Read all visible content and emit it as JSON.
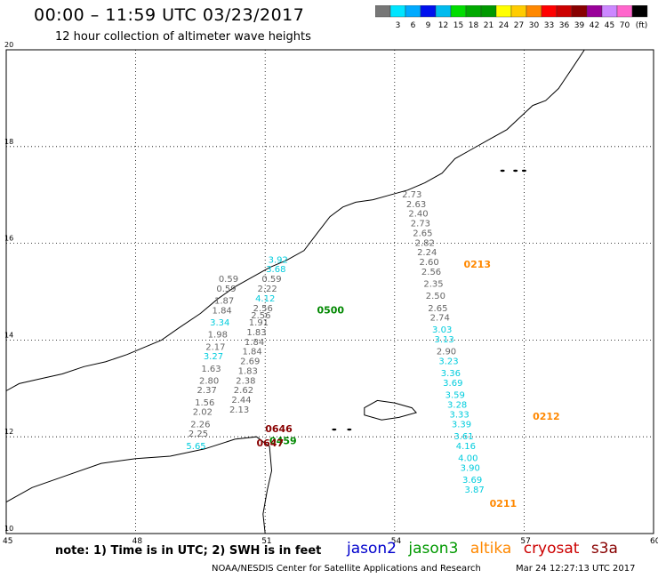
{
  "header": {
    "title": "00:00 – 11:59 UTC 03/23/2017",
    "subtitle": "12 hour collection of altimeter wave heights"
  },
  "legend": {
    "bins": [
      {
        "label": "",
        "color": "#777777"
      },
      {
        "label": "3",
        "color": "#00e5ff"
      },
      {
        "label": "6",
        "color": "#00aaff"
      },
      {
        "label": "9",
        "color": "#0011ee"
      },
      {
        "label": "12",
        "color": "#00bbee"
      },
      {
        "label": "15",
        "color": "#00dd00"
      },
      {
        "label": "18",
        "color": "#00aa00"
      },
      {
        "label": "21",
        "color": "#009900"
      },
      {
        "label": "24",
        "color": "#ffff00"
      },
      {
        "label": "27",
        "color": "#ffcc00"
      },
      {
        "label": "30",
        "color": "#ff8800"
      },
      {
        "label": "33",
        "color": "#ff0000"
      },
      {
        "label": "36",
        "color": "#cc0000"
      },
      {
        "label": "39",
        "color": "#880000"
      },
      {
        "label": "42",
        "color": "#990099"
      },
      {
        "label": "45",
        "color": "#cc88ff"
      },
      {
        "label": "70",
        "color": "#ff66cc"
      },
      {
        "label": "(ft)",
        "color": "#000000"
      }
    ]
  },
  "chart_data": {
    "type": "scatter",
    "xlim": [
      45,
      60
    ],
    "ylim": [
      10,
      20
    ],
    "x_ticks": [
      "45",
      "48",
      "51",
      "54",
      "57",
      "60"
    ],
    "y_ticks": [
      "10",
      "12",
      "14",
      "16",
      "18",
      "20"
    ],
    "grid": true,
    "series": [
      {
        "name": "altika",
        "color": "#777777",
        "points": [
          [
            54.4,
            16.95,
            "2.73"
          ],
          [
            54.5,
            16.75,
            "2.63"
          ],
          [
            54.55,
            16.55,
            "2.40"
          ],
          [
            54.6,
            16.35,
            "2.73"
          ],
          [
            54.65,
            16.15,
            "2.65"
          ],
          [
            54.7,
            15.95,
            "2.82"
          ],
          [
            54.75,
            15.75,
            "2.24"
          ],
          [
            54.8,
            15.55,
            "2.60"
          ],
          [
            54.85,
            15.35,
            "2.56"
          ],
          [
            54.9,
            15.1,
            "2.35"
          ],
          [
            54.95,
            14.85,
            "2.50"
          ],
          [
            55.0,
            14.6,
            "2.65"
          ],
          [
            55.05,
            14.4,
            "2.74"
          ],
          [
            55.1,
            14.15,
            "3.03"
          ],
          [
            55.15,
            13.95,
            "3.13"
          ],
          [
            55.2,
            13.7,
            "2.90"
          ],
          [
            55.25,
            13.5,
            "3.23"
          ],
          [
            55.3,
            13.25,
            "3.36"
          ],
          [
            55.35,
            13.05,
            "3.69"
          ],
          [
            55.4,
            12.8,
            "3.59"
          ],
          [
            55.45,
            12.6,
            "3.28"
          ],
          [
            55.5,
            12.4,
            "3.33"
          ],
          [
            55.55,
            12.2,
            "3.39"
          ],
          [
            55.6,
            11.95,
            "3.61"
          ],
          [
            55.65,
            11.75,
            "4.16"
          ],
          [
            55.7,
            11.5,
            "4.00"
          ],
          [
            55.75,
            11.3,
            "3.90"
          ],
          [
            55.8,
            11.05,
            "3.69"
          ],
          [
            55.85,
            10.85,
            "3.87"
          ]
        ]
      },
      {
        "name": "jason3",
        "color": "#777777",
        "points": [
          [
            51.3,
            15.6,
            "3.92"
          ],
          [
            51.25,
            15.4,
            "3.68"
          ],
          [
            51.15,
            15.2,
            "0.59"
          ],
          [
            51.05,
            15.0,
            "2.22"
          ],
          [
            51.0,
            14.8,
            "4.12"
          ],
          [
            50.95,
            14.6,
            "2.56"
          ],
          [
            50.9,
            14.45,
            "2.56"
          ],
          [
            50.85,
            14.3,
            "1.91"
          ],
          [
            50.8,
            14.1,
            "1.83"
          ],
          [
            50.75,
            13.9,
            "1.84"
          ],
          [
            50.7,
            13.7,
            "1.84"
          ],
          [
            50.65,
            13.5,
            "2.69"
          ],
          [
            50.6,
            13.3,
            "1.83"
          ],
          [
            50.55,
            13.1,
            "2.38"
          ],
          [
            50.5,
            12.9,
            "2.62"
          ],
          [
            50.45,
            12.7,
            "2.44"
          ],
          [
            50.4,
            12.5,
            "2.13"
          ]
        ]
      },
      {
        "name": "jason2",
        "color": "#777777",
        "points": [
          [
            50.15,
            15.2,
            "0.59"
          ],
          [
            50.1,
            15.0,
            "0.59"
          ],
          [
            50.05,
            14.75,
            "1.87"
          ],
          [
            50.0,
            14.55,
            "1.84"
          ],
          [
            49.95,
            14.3,
            "3.34"
          ],
          [
            49.9,
            14.05,
            "1.98"
          ],
          [
            49.85,
            13.8,
            "2.17"
          ],
          [
            49.8,
            13.6,
            "3.27"
          ],
          [
            49.75,
            13.35,
            "1.63"
          ],
          [
            49.7,
            13.1,
            "2.80"
          ],
          [
            49.65,
            12.9,
            "2.37"
          ],
          [
            49.6,
            12.65,
            "1.56"
          ],
          [
            49.55,
            12.45,
            "2.02"
          ],
          [
            49.5,
            12.2,
            "2.26"
          ],
          [
            49.45,
            12.0,
            "2.25"
          ],
          [
            49.4,
            11.75,
            "5.65"
          ]
        ]
      }
    ],
    "annotations": [
      {
        "text": "0213",
        "color": "#ff8800",
        "x": 55.6,
        "y": 15.5
      },
      {
        "text": "0212",
        "color": "#ff8800",
        "x": 57.2,
        "y": 12.35
      },
      {
        "text": "0211",
        "color": "#ff8800",
        "x": 56.2,
        "y": 10.55
      },
      {
        "text": "0500",
        "color": "#008800",
        "x": 52.2,
        "y": 14.55
      },
      {
        "text": "0459",
        "color": "#008800",
        "x": 51.1,
        "y": 11.85
      },
      {
        "text": "0646",
        "color": "#880000",
        "x": 51.0,
        "y": 12.1
      },
      {
        "text": "0647",
        "color": "#880000",
        "x": 50.8,
        "y": 11.8
      }
    ]
  },
  "footer": {
    "note": "note:  1) Time is in UTC;  2) SWH is in feet",
    "sats": [
      {
        "label": "jason2",
        "color": "#0000cc"
      },
      {
        "label": "jason3",
        "color": "#009900"
      },
      {
        "label": "altika",
        "color": "#ff8800"
      },
      {
        "label": "cryosat",
        "color": "#cc0000"
      },
      {
        "label": "s3a",
        "color": "#880000"
      }
    ],
    "credit": "NOAA/NESDIS Center for Satellite Applications and Research",
    "timestamp": "Mar 24 12:27:13 UTC 2017"
  }
}
